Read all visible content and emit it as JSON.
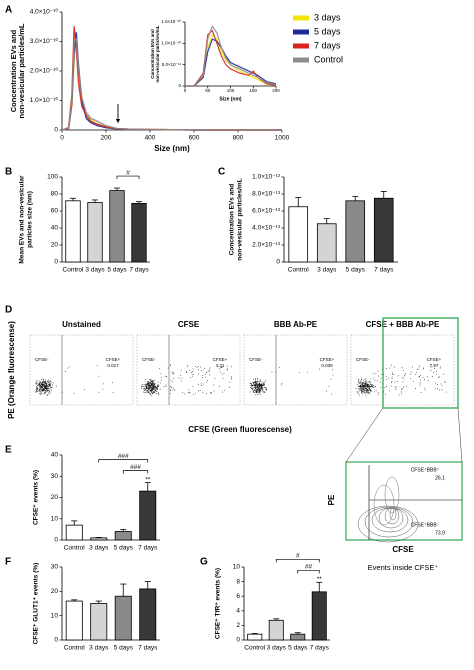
{
  "chart_data": [
    {
      "type": "line",
      "panel": "A",
      "xlabel": "Size (nm)",
      "ylabel": [
        "Concentration EVs and",
        "non-vesicular particles/mL"
      ],
      "x": [
        0,
        30,
        45,
        55,
        65,
        75,
        90,
        110,
        130,
        160,
        200,
        250,
        300,
        400,
        500,
        600,
        700,
        800,
        900,
        1000
      ],
      "xlim": [
        0,
        1000
      ],
      "xticks": [
        0,
        200,
        400,
        600,
        800,
        1000
      ],
      "ylim": [
        0,
        4e-10
      ],
      "yticks": [
        0,
        {
          "value": 1e-10,
          "label": "1.0×10⁻¹⁰"
        },
        {
          "value": 2e-10,
          "label": "2.0×10⁻¹⁰"
        },
        {
          "value": 3e-10,
          "label": "3.0×10⁻¹⁰"
        },
        {
          "value": 4e-10,
          "label": "4.0×10⁻¹⁰"
        }
      ],
      "series": [
        {
          "name": "3 days",
          "color": "#f2e600",
          "values": [
            0,
            5e-12,
            8e-11,
            2.4e-10,
            3e-10,
            2e-10,
            1e-10,
            5e-11,
            3.5e-11,
            2e-11,
            1e-11,
            5e-12,
            3e-12,
            2e-12,
            1e-12,
            0,
            0,
            0,
            0,
            0
          ]
        },
        {
          "name": "5 days",
          "color": "#1f2a9c",
          "values": [
            0,
            5e-12,
            9e-11,
            2.6e-10,
            3.3e-10,
            2.2e-10,
            1e-10,
            4e-11,
            2.5e-11,
            1.5e-11,
            8e-12,
            4e-12,
            2e-12,
            1e-12,
            1e-12,
            0,
            0,
            0,
            0,
            0
          ]
        },
        {
          "name": "7 days",
          "color": "#d9251d",
          "values": [
            0,
            8e-12,
            1.2e-10,
            3.5e-10,
            2.8e-10,
            1.6e-10,
            8e-11,
            5e-11,
            3e-11,
            2e-11,
            1e-11,
            5e-12,
            3e-12,
            2e-12,
            1e-12,
            1e-12,
            0,
            0,
            0,
            0
          ]
        },
        {
          "name": "Control",
          "color": "#8c8c8c",
          "values": [
            0,
            5e-12,
            1e-10,
            3e-10,
            3.1e-10,
            2.1e-10,
            1.1e-10,
            6e-11,
            4e-11,
            3e-11,
            1.5e-11,
            5e-12,
            3e-12,
            2e-12,
            1e-12,
            1e-12,
            1e-12,
            0,
            0,
            0
          ]
        }
      ]
    },
    {
      "type": "line",
      "xlabel": "Size (nm)",
      "ylabel": [
        "Concentration EVs and",
        "non-vesicular particles/mL"
      ],
      "x": [
        0,
        20,
        40,
        50,
        60,
        70,
        80,
        90,
        100,
        120,
        140,
        150,
        160,
        180,
        200
      ],
      "xlim": [
        0,
        200
      ],
      "xticks": [
        0,
        50,
        100,
        150,
        200
      ],
      "ylim": [
        0,
        1.5e-10
      ],
      "yticks": [
        0,
        {
          "value": 5e-11,
          "label": "5.0×10⁻¹¹"
        },
        {
          "value": 1e-10,
          "label": "1.0×10⁻¹⁰"
        },
        {
          "value": 1.5e-10,
          "label": "1.5×10⁻¹⁰"
        }
      ],
      "series": [
        {
          "color": "#f2e600",
          "values": [
            0,
            0,
            2e-11,
            9e-11,
            1.2e-10,
            1.1e-10,
            8e-11,
            6e-11,
            5e-11,
            3.5e-11,
            2.5e-11,
            2e-11,
            1.5e-11,
            5e-12,
            2e-12
          ]
        },
        {
          "color": "#1f2a9c",
          "values": [
            0,
            0,
            2e-11,
            8e-11,
            1.1e-10,
            1.05e-10,
            9e-11,
            7e-11,
            5.5e-11,
            4.5e-11,
            3.5e-11,
            3e-11,
            2.5e-11,
            1e-11,
            5e-12
          ]
        },
        {
          "color": "#d9251d",
          "values": [
            0,
            0,
            3e-11,
            1.2e-10,
            1.3e-10,
            1e-10,
            7e-11,
            5e-11,
            4e-11,
            3e-11,
            2.5e-11,
            3.5e-11,
            2e-11,
            5e-12,
            2e-12
          ]
        },
        {
          "color": "#8c8c8c",
          "values": [
            0,
            0,
            2.5e-11,
            1.1e-10,
            1.4e-10,
            1.25e-10,
            9e-11,
            6.5e-11,
            5e-11,
            4e-11,
            3e-11,
            2.5e-11,
            2e-11,
            8e-12,
            3e-12
          ]
        }
      ]
    },
    {
      "type": "bar",
      "panel": "B",
      "ylabel": [
        "Mean EVs and non-vesicular",
        "particles size (nm)"
      ],
      "categories": [
        "Control",
        "3 days",
        "5 days",
        "7 days"
      ],
      "values": [
        72,
        70,
        84,
        69
      ],
      "errors": [
        3,
        3,
        3,
        2
      ],
      "colors": [
        "#ffffff",
        "#d4d4d4",
        "#8a8a8a",
        "#383838"
      ],
      "ylim": [
        0,
        100
      ],
      "yticks": [
        0,
        20,
        40,
        60,
        80,
        100
      ],
      "annotations": [
        {
          "label": "#",
          "between": [
            "5 days",
            "7 days"
          ]
        }
      ]
    },
    {
      "type": "bar",
      "panel": "C",
      "ylabel": [
        "Concentration EVs and",
        "non-vesicular particles/mL"
      ],
      "categories": [
        "Control",
        "3 days",
        "5 days",
        "7 days"
      ],
      "values": [
        6.5e-13,
        4.5e-13,
        7.2e-13,
        7.5e-13
      ],
      "errors": [
        1.1e-13,
        6e-14,
        5e-14,
        8e-14
      ],
      "colors": [
        "#ffffff",
        "#d4d4d4",
        "#8a8a8a",
        "#383838"
      ],
      "ylim": [
        0,
        1e-12
      ],
      "yticks": [
        0,
        {
          "value": 2e-13,
          "label": "2.0×10⁻¹³"
        },
        {
          "value": 4e-13,
          "label": "4.0×10⁻¹³"
        },
        {
          "value": 6e-13,
          "label": "6.0×10⁻¹³"
        },
        {
          "value": 8e-13,
          "label": "8.0×10⁻¹³"
        },
        {
          "value": 1e-12,
          "label": "1.0×10⁻¹²"
        }
      ],
      "annotations": []
    },
    {
      "type": "bar",
      "panel": "E",
      "ylabel": [
        "CFSE⁺ events (%)"
      ],
      "categories": [
        "Control",
        "3 days",
        "5 days",
        "7 days"
      ],
      "values": [
        7,
        1,
        4,
        23
      ],
      "errors": [
        2,
        0.2,
        1,
        4
      ],
      "colors": [
        "#ffffff",
        "#d4d4d4",
        "#8a8a8a",
        "#383838"
      ],
      "ylim": [
        0,
        40
      ],
      "yticks": [
        0,
        10,
        20,
        30,
        40
      ],
      "annotations": [
        {
          "label": "###",
          "between": [
            "3 days",
            "7 days"
          ]
        },
        {
          "label": "###",
          "between": [
            "5 days",
            "7 days"
          ]
        },
        {
          "label": "**",
          "over": "7 days"
        }
      ]
    },
    {
      "type": "bar",
      "panel": "F",
      "ylabel": [
        "CFSE⁺ GLUT1⁺ events (%)"
      ],
      "categories": [
        "Control",
        "3 days",
        "5 days",
        "7 days"
      ],
      "values": [
        16,
        15,
        18,
        21
      ],
      "errors": [
        0.5,
        1,
        5,
        3
      ],
      "colors": [
        "#ffffff",
        "#d4d4d4",
        "#8a8a8a",
        "#383838"
      ],
      "ylim": [
        0,
        30
      ],
      "yticks": [
        0,
        10,
        20,
        30
      ],
      "annotations": []
    },
    {
      "type": "bar",
      "panel": "G",
      "ylabel": [
        "CFSE⁺ TfR⁺ events (%)"
      ],
      "categories": [
        "Control",
        "3 days",
        "5 days",
        "7 days"
      ],
      "values": [
        0.8,
        2.7,
        0.8,
        6.6
      ],
      "errors": [
        0.1,
        0.2,
        0.2,
        1.3
      ],
      "colors": [
        "#ffffff",
        "#d4d4d4",
        "#8a8a8a",
        "#383838"
      ],
      "ylim": [
        0,
        10
      ],
      "yticks": [
        0,
        2,
        4,
        6,
        8,
        10
      ],
      "annotations": [
        {
          "label": "#",
          "between": [
            "3 days",
            "7 days"
          ]
        },
        {
          "label": "##",
          "between": [
            "5 days",
            "7 days"
          ]
        },
        {
          "label": "**",
          "over": "7 days"
        }
      ]
    }
  ],
  "flow": {
    "panel": "D",
    "ylabel": "PE (Orange fluorescense)",
    "xlabel": "CFSE (Green fluorescense)",
    "plots": [
      {
        "title": "Unstained",
        "negative": "CFSE-",
        "positive": "CFSE+",
        "percent": 0.017
      },
      {
        "title": "CFSE",
        "negative": "CFSE-",
        "positive": "CFSE+",
        "percent": 4.31
      },
      {
        "title": "BBB Ab-PE",
        "negative": "CFSE-",
        "positive": "CFSE+",
        "percent": 0.039
      },
      {
        "title": "CFSE + BBB Ab-PE",
        "negative": "CFSE-",
        "positive": "CFSE+",
        "percent": 7.97
      }
    ]
  },
  "contour": {
    "xlabel": "CFSE",
    "ylabel": "PE",
    "upper_label": "CFSE⁺BBB⁺",
    "upper_value": "26,1",
    "lower_label": "CFSE⁺BBB⁻",
    "lower_value": "73,9",
    "caption": "Events inside CFSE⁺"
  }
}
